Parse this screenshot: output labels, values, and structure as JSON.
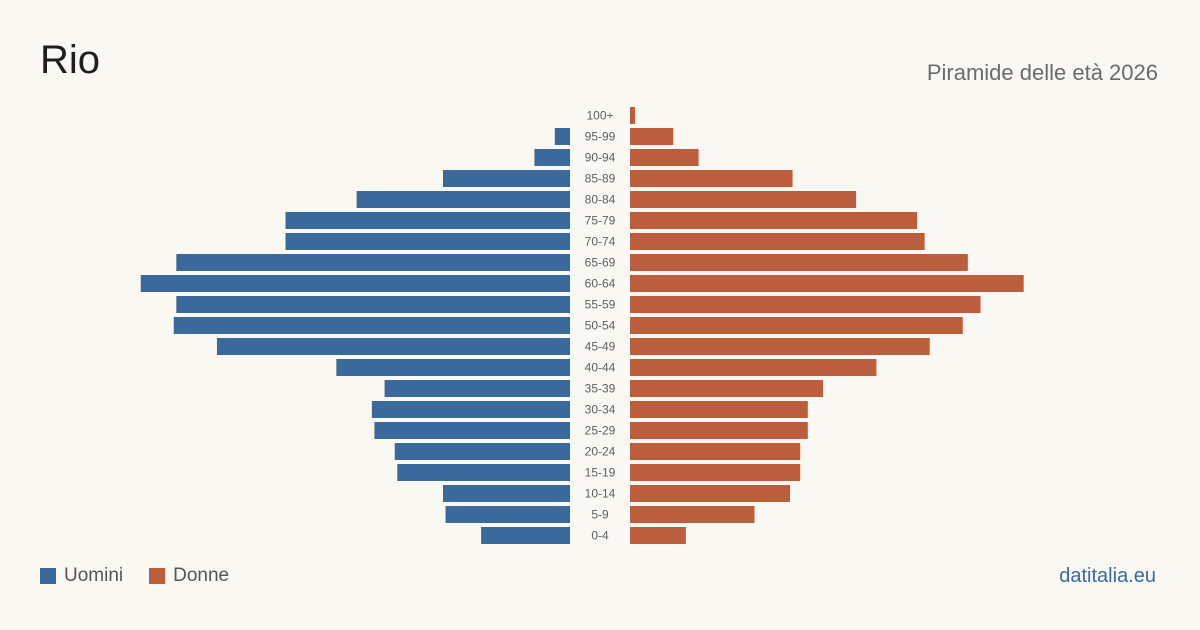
{
  "header": {
    "title": "Rio",
    "subtitle": "Piramide delle età 2026"
  },
  "legend": {
    "men_label": "Uomini",
    "women_label": "Donne"
  },
  "footer": {
    "source": "datitalia.eu"
  },
  "colors": {
    "men": "#3a6a9b",
    "women": "#bb5e3d",
    "background": "#faf8f3"
  },
  "chart_data": {
    "type": "bar",
    "orientation": "horizontal-pyramid",
    "categories": [
      "100+",
      "95-99",
      "90-94",
      "85-89",
      "80-84",
      "75-79",
      "70-74",
      "65-69",
      "60-64",
      "55-59",
      "50-54",
      "45-49",
      "40-44",
      "35-39",
      "30-34",
      "25-29",
      "20-24",
      "15-19",
      "10-14",
      "5-9",
      "0-4"
    ],
    "series": [
      {
        "name": "Uomini",
        "values": [
          0,
          6,
          14,
          50,
          84,
          112,
          112,
          155,
          169,
          155,
          156,
          139,
          92,
          73,
          78,
          77,
          69,
          68,
          50,
          49,
          35
        ]
      },
      {
        "name": "Donne",
        "values": [
          2,
          17,
          27,
          64,
          89,
          113,
          116,
          133,
          155,
          138,
          131,
          118,
          97,
          76,
          70,
          70,
          67,
          67,
          63,
          49,
          22
        ]
      }
    ],
    "legend_position": "bottom-left",
    "grid": false
  }
}
